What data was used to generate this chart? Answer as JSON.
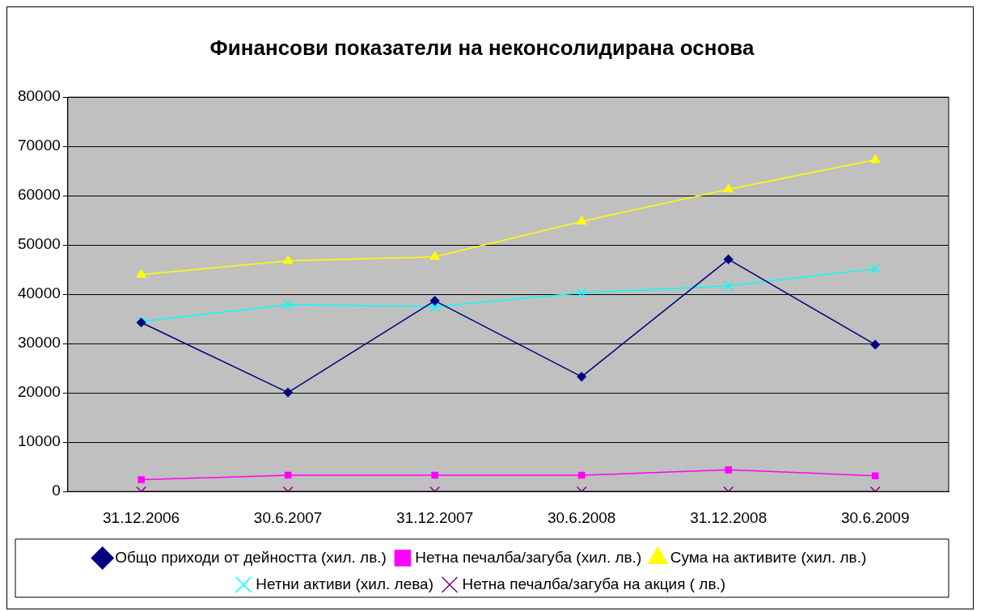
{
  "chart_data": {
    "type": "line",
    "title": "Финансови показатели на неконсолидирана основа",
    "categories": [
      "31.12.2006",
      "30.6.2007",
      "31.12.2007",
      "30.6.2008",
      "31.12.2008",
      "30.6.2009"
    ],
    "series": [
      {
        "name": "Общо приходи от дейността (хил. лв.)",
        "color": "#000080",
        "marker": "diamond",
        "values": [
          34300,
          20100,
          38700,
          23300,
          47100,
          29800
        ]
      },
      {
        "name": "Нетна печалба/загуба (хил. лв.)",
        "color": "#ff00ff",
        "marker": "square",
        "values": [
          2400,
          3300,
          3300,
          3300,
          4400,
          3200
        ]
      },
      {
        "name": "Сума на активите (хил. лв.)",
        "color": "#ffff00",
        "marker": "triangle",
        "values": [
          44000,
          46800,
          47600,
          54800,
          61300,
          67300
        ]
      },
      {
        "name": "Нетни активи (хил. лева)",
        "color": "#00ffff",
        "marker": "cross",
        "values": [
          34500,
          37900,
          37500,
          40300,
          41700,
          45200
        ]
      },
      {
        "name": "Нетна печалба/загуба на акция ( лв.)",
        "color": "#800080",
        "marker": "cross",
        "values": [
          0,
          0,
          0,
          0,
          0,
          0
        ]
      }
    ],
    "ylim": [
      0,
      80000
    ],
    "yticks": [
      0,
      10000,
      20000,
      30000,
      40000,
      50000,
      60000,
      70000,
      80000
    ],
    "grid": "y",
    "legend": "bottom",
    "line_style": "solid"
  }
}
